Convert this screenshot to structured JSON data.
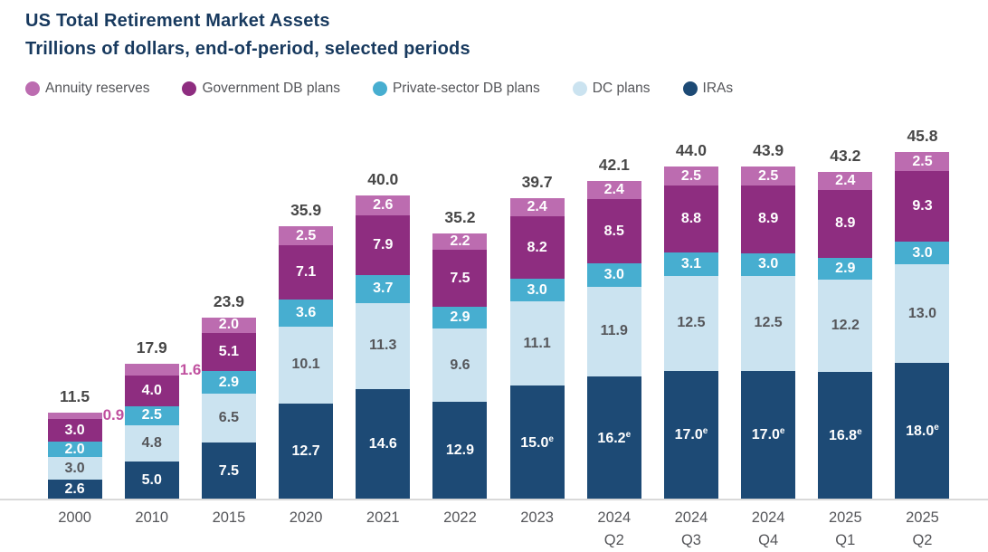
{
  "header": {
    "title": "US Total Retirement Market Assets",
    "subtitle": "Trillions of dollars, end-of-period, selected periods"
  },
  "legend": [
    {
      "label": "Annuity reserves",
      "color": "#bc6cb0"
    },
    {
      "label": "Government DB plans",
      "color": "#8e2d80"
    },
    {
      "label": "Private-sector DB plans",
      "color": "#47aed0"
    },
    {
      "label": "DC plans",
      "color": "#cbe3f0"
    },
    {
      "label": "IRAs",
      "color": "#1d4a75"
    }
  ],
  "chart_data": {
    "type": "bar",
    "stacked": true,
    "title": "US Total Retirement Market Assets",
    "subtitle": "Trillions of dollars, end-of-period, selected periods",
    "unit": "trillions of US dollars",
    "legend_position": "top",
    "grid": false,
    "categories": [
      "2000",
      "2010",
      "2015",
      "2020",
      "2021",
      "2022",
      "2023",
      "2024\nQ2",
      "2024\nQ3",
      "2024\nQ4",
      "2025\nQ1",
      "2025\nQ2"
    ],
    "series": [
      {
        "name": "IRAs",
        "color": "#1d4a75",
        "label_color": "#ffffff",
        "values": [
          2.6,
          5.0,
          7.5,
          12.7,
          14.6,
          12.9,
          15.0,
          16.2,
          17.0,
          17.0,
          16.8,
          18.0
        ],
        "labels": [
          "2.6",
          "5.0",
          "7.5",
          "12.7",
          "14.6",
          "12.9",
          "15.0e",
          "16.2e",
          "17.0e",
          "17.0e",
          "16.8e",
          "18.0e"
        ]
      },
      {
        "name": "DC plans",
        "color": "#cbe3f0",
        "label_color": "#55565a",
        "values": [
          3.0,
          4.8,
          6.5,
          10.1,
          11.3,
          9.6,
          11.1,
          11.9,
          12.5,
          12.5,
          12.2,
          13.0
        ],
        "labels": [
          "3.0",
          "4.8",
          "6.5",
          "10.1",
          "11.3",
          "9.6",
          "11.1",
          "11.9",
          "12.5",
          "12.5",
          "12.2",
          "13.0"
        ]
      },
      {
        "name": "Private-sector DB plans",
        "color": "#47aed0",
        "label_color": "#ffffff",
        "values": [
          2.0,
          2.5,
          2.9,
          3.6,
          3.7,
          2.9,
          3.0,
          3.0,
          3.1,
          3.0,
          2.9,
          3.0
        ],
        "labels": [
          "2.0",
          "2.5",
          "2.9",
          "3.6",
          "3.7",
          "2.9",
          "3.0",
          "3.0",
          "3.1",
          "3.0",
          "2.9",
          "3.0"
        ]
      },
      {
        "name": "Government DB plans",
        "color": "#8e2d80",
        "label_color": "#ffffff",
        "values": [
          3.0,
          4.0,
          5.1,
          7.1,
          7.9,
          7.5,
          8.2,
          8.5,
          8.8,
          8.9,
          8.9,
          9.3
        ],
        "labels": [
          "3.0",
          "4.0",
          "5.1",
          "7.1",
          "7.9",
          "7.5",
          "8.2",
          "8.5",
          "8.8",
          "8.9",
          "8.9",
          "9.3"
        ]
      },
      {
        "name": "Annuity reserves",
        "color": "#bc6cb0",
        "label_color": "#ffffff",
        "values": [
          0.9,
          1.6,
          2.0,
          2.5,
          2.6,
          2.2,
          2.4,
          2.4,
          2.5,
          2.5,
          2.4,
          2.5
        ],
        "labels": [
          "0.9",
          "1.6",
          "2.0",
          "2.5",
          "2.6",
          "2.2",
          "2.4",
          "2.4",
          "2.5",
          "2.5",
          "2.4",
          "2.5"
        ],
        "outside_labels": [
          true,
          true,
          false,
          false,
          false,
          false,
          false,
          false,
          false,
          false,
          false,
          false
        ],
        "outside_label_color": "#c0519f"
      }
    ],
    "totals": [
      "11.5",
      "17.9",
      "23.9",
      "35.9",
      "40.0",
      "35.2",
      "39.7",
      "42.1",
      "44.0",
      "43.9",
      "43.2",
      "45.8"
    ],
    "estimate_note": "e = estimated value (superscript e on labels)"
  },
  "colors": {
    "title_text": "#17395e",
    "axis_text": "#55565a",
    "total_label_text": "#474747",
    "axis_line": "#d9d9d9",
    "background": "#ffffff"
  }
}
